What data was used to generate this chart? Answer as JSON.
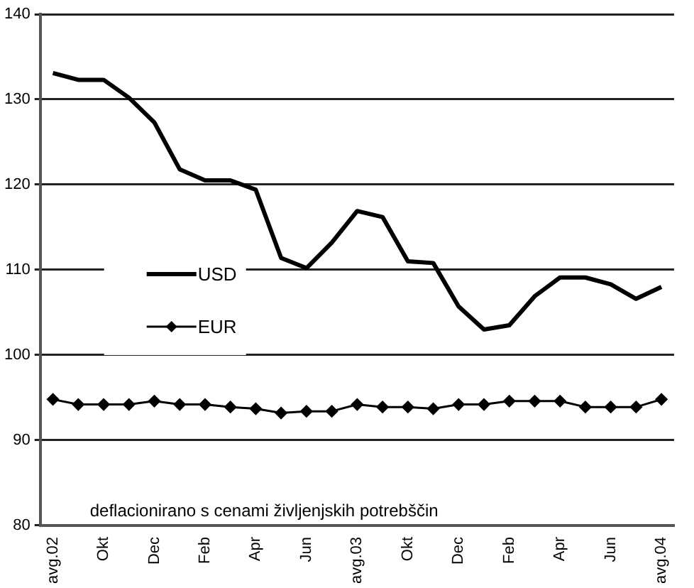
{
  "chart_data": {
    "type": "line",
    "categories": [
      "avg.02",
      null,
      "Okt",
      null,
      "Dec",
      null,
      "Feb",
      null,
      "Apr",
      null,
      "Jun",
      null,
      "avg.03",
      null,
      "Okt",
      null,
      "Dec",
      null,
      "Feb",
      null,
      "Apr",
      null,
      "Jun",
      null,
      "avg.04"
    ],
    "series": [
      {
        "name": "USD",
        "color": "#000000",
        "marker": "none",
        "values": [
          133.1,
          132.3,
          132.3,
          130.2,
          127.3,
          121.8,
          120.5,
          120.5,
          119.4,
          111.4,
          110.2,
          113.2,
          116.9,
          116.2,
          111.0,
          110.8,
          105.7,
          103.0,
          103.5,
          106.9,
          109.1,
          109.1,
          108.3,
          106.6,
          108.0
        ]
      },
      {
        "name": "EUR",
        "color": "#000000",
        "marker": "diamond",
        "values": [
          94.8,
          94.2,
          94.2,
          94.2,
          94.6,
          94.2,
          94.2,
          93.9,
          93.7,
          93.2,
          93.4,
          93.4,
          94.2,
          93.9,
          93.9,
          93.7,
          94.2,
          94.2,
          94.6,
          94.6,
          94.6,
          93.9,
          93.9,
          93.9,
          94.8
        ]
      }
    ],
    "ylim": [
      80,
      140
    ],
    "yticks": [
      80,
      90,
      100,
      110,
      120,
      130,
      140
    ],
    "grid": "y",
    "legend": "left",
    "annotations": [
      "deflacionirano s cenami življenjskih potrebščin"
    ]
  }
}
